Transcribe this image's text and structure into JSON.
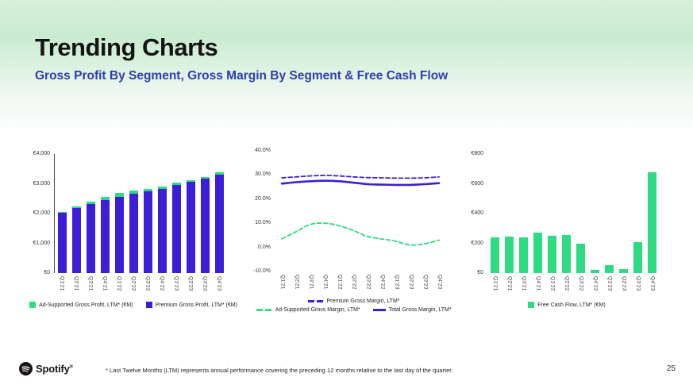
{
  "slide": {
    "title": "Trending Charts",
    "subtitle": "Gross Profit By Segment, Gross Margin By Segment & Free Cash Flow",
    "footnote": "* Last Twelve Months (LTM) represents annual performance covering the preceding 12 months relative to the last day of the quarter.",
    "logo_text": "Spotify",
    "logo_reg_mark": "®",
    "page_number": "25"
  },
  "colors": {
    "purple": "#3C1ED6",
    "green": "#2DDC82",
    "subtitle_blue": "#2D3EAE",
    "axis_text": "#333333"
  },
  "chart_data": [
    {
      "type": "bar",
      "stacked": true,
      "title": "Gross Profit By Segment",
      "categories": [
        "Q1'21",
        "Q2'21",
        "Q3'21",
        "Q4'21",
        "Q1'22",
        "Q2'22",
        "Q3'22",
        "Q4'22",
        "Q1'23",
        "Q2'23",
        "Q3'23",
        "Q4'23"
      ],
      "series": [
        {
          "name": "Premium Gross Profit, LTM* (€M)",
          "color_key": "purple",
          "values": [
            2020,
            2180,
            2320,
            2450,
            2570,
            2660,
            2750,
            2840,
            2965,
            3070,
            3175,
            3300
          ]
        },
        {
          "name": "Ad-Supported Gross Profit, LTM* (€M)",
          "color_key": "green",
          "values": [
            40,
            70,
            90,
            110,
            120,
            100,
            85,
            70,
            65,
            50,
            55,
            90
          ]
        }
      ],
      "ylim": [
        0,
        4000
      ],
      "yticks": [
        "€0",
        "€1,000",
        "€2,000",
        "€3,000",
        "€4,000"
      ],
      "legend_rows": [
        [
          {
            "label": "Ad-Supported Gross Profit, LTM* (€M)",
            "color_key": "green",
            "marker": "square"
          },
          {
            "label": "Premium Gross Profit, LTM* (€M)",
            "color_key": "purple",
            "marker": "square"
          }
        ]
      ]
    },
    {
      "type": "line",
      "title": "Gross Margin By Segment",
      "categories": [
        "Q1'21",
        "Q2'21",
        "Q3'21",
        "Q4'21",
        "Q1'22",
        "Q2'22",
        "Q3'22",
        "Q4'22",
        "Q1'23",
        "Q2'23",
        "Q3'23",
        "Q4'23"
      ],
      "series": [
        {
          "name": "Premium Gross Margin, LTM*",
          "color_key": "purple",
          "style": "dashed",
          "values": [
            28.8,
            29.2,
            29.6,
            29.8,
            29.6,
            29.2,
            28.9,
            28.8,
            28.7,
            28.7,
            28.8,
            29.2
          ]
        },
        {
          "name": "Total Gross Margin, LTM*",
          "color_key": "purple",
          "style": "solid",
          "values": [
            26.4,
            27.0,
            27.4,
            27.6,
            27.4,
            26.8,
            26.2,
            26.0,
            25.9,
            25.9,
            26.2,
            26.6
          ]
        },
        {
          "name": "Ad-Supported Gross Margin, LTM*",
          "color_key": "green",
          "style": "dashed",
          "values": [
            3.5,
            6.5,
            9.5,
            10.0,
            9.0,
            7.0,
            4.5,
            3.5,
            2.5,
            1.0,
            1.5,
            3.0
          ]
        }
      ],
      "ylim": [
        -10,
        40
      ],
      "yticks": [
        "-10.0%",
        "0.0%",
        "10.0%",
        "20.0%",
        "30.0%",
        "40.0%"
      ],
      "legend_rows": [
        [
          {
            "label": "Premium Gross Margin, LTM*",
            "color_key": "purple",
            "marker": "dashes"
          }
        ],
        [
          {
            "label": "Ad-Supported Gross Margin, LTM*",
            "color_key": "green",
            "marker": "dashes"
          },
          {
            "label": "Total Gross Margin, LTM*",
            "color_key": "purple",
            "marker": "solid-line"
          }
        ]
      ]
    },
    {
      "type": "bar",
      "stacked": false,
      "title": "Free Cash Flow",
      "categories": [
        "Q1'21",
        "Q2'21",
        "Q3'21",
        "Q4'21",
        "Q1'22",
        "Q2'22",
        "Q3'22",
        "Q4'22",
        "Q1'23",
        "Q2'23",
        "Q3'23",
        "Q4'23"
      ],
      "series": [
        {
          "name": "Free Cash Flow, LTM* (€M)",
          "color_key": "green",
          "values": [
            240,
            248,
            242,
            272,
            252,
            258,
            195,
            20,
            55,
            25,
            210,
            675
          ]
        }
      ],
      "ylim": [
        0,
        800
      ],
      "yticks": [
        "€0",
        "€200",
        "€400",
        "€600",
        "€800"
      ],
      "legend_rows": [
        [
          {
            "label": "Free Cash Flow, LTM* (€M)",
            "color_key": "green",
            "marker": "square"
          }
        ]
      ]
    }
  ]
}
